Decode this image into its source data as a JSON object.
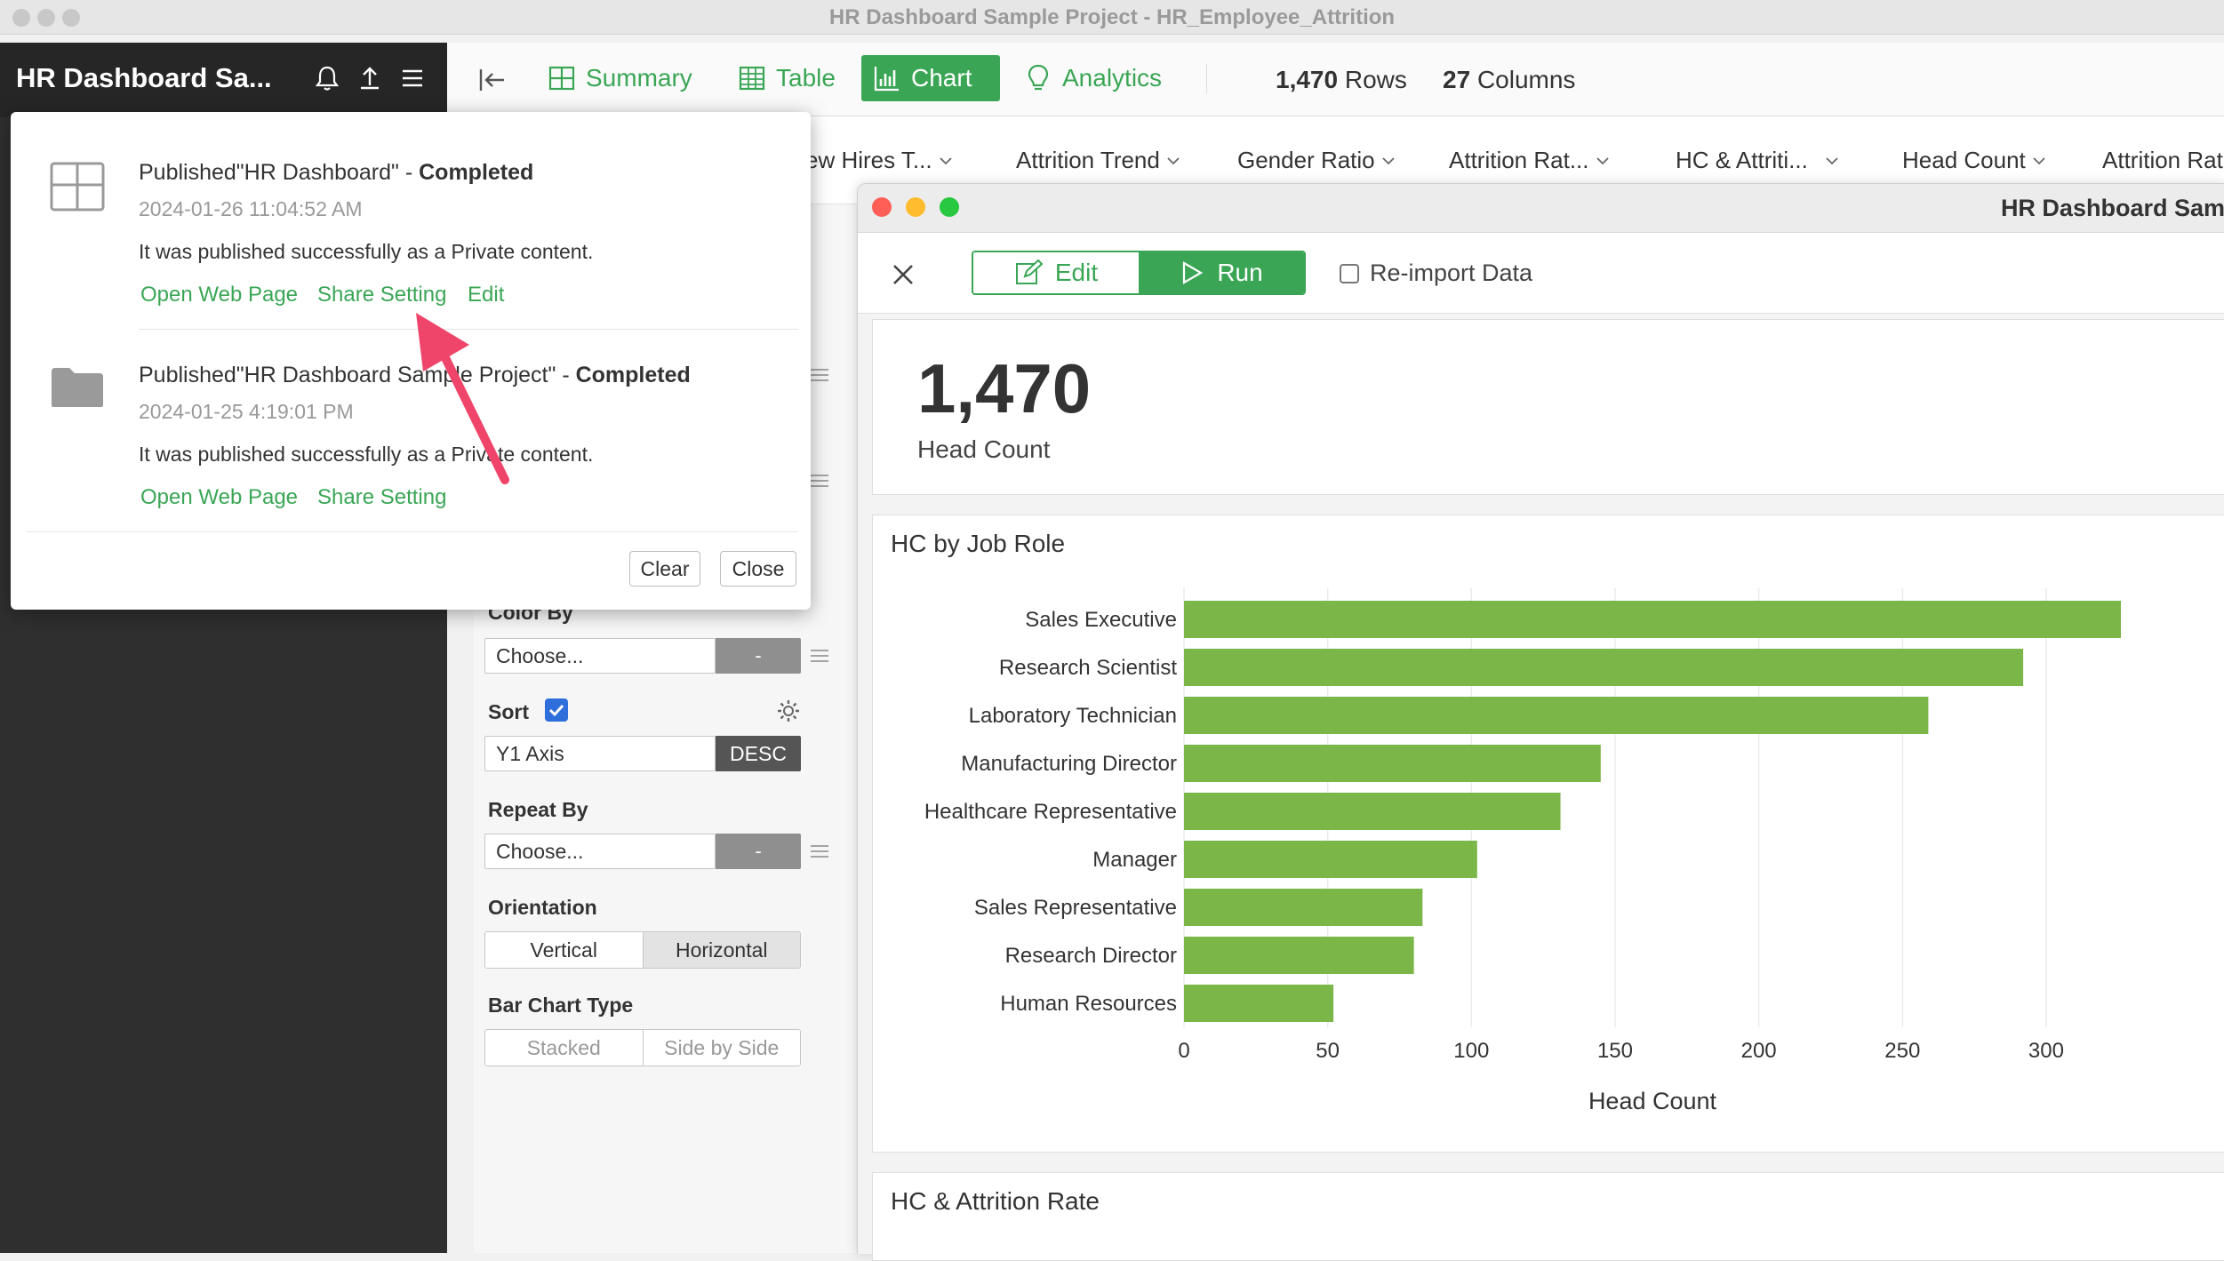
{
  "window": {
    "title": "HR Dashboard Sample Project - HR_Employee_Attrition"
  },
  "sidebar": {
    "project_name": "HR Dashboard Sa..."
  },
  "toolbar": {
    "summary": "Summary",
    "table": "Table",
    "chart": "Chart",
    "analytics": "Analytics",
    "rows_num": "1,470",
    "rows_label": "Rows",
    "cols_num": "27",
    "cols_label": "Columns"
  },
  "columns": [
    "ew Hires T...",
    "Attrition Trend",
    "Gender Ratio",
    "Attrition Rat...",
    "HC & Attriti...",
    "Head Count",
    "Attrition Rat"
  ],
  "settings": {
    "color_by_label": "Color By",
    "color_by_value": "Choose...",
    "color_by_btn": "-",
    "sort_label": "Sort",
    "sort_value": "Y1 Axis",
    "sort_order": "DESC",
    "repeat_by_label": "Repeat By",
    "repeat_by_value": "Choose...",
    "repeat_by_btn": "-",
    "orientation_label": "Orientation",
    "orientation_options": [
      "Vertical",
      "Horizontal"
    ],
    "orientation_selected": "Horizontal",
    "bar_type_label": "Bar Chart Type",
    "bar_type_options": [
      "Stacked",
      "Side by Side"
    ]
  },
  "dashboard": {
    "title": "HR Dashboard Sam",
    "edit": "Edit",
    "run": "Run",
    "reimport": "Re-import Data",
    "kpi_value": "1,470",
    "kpi_label": "Head Count",
    "chart_title": "HC by Job Role",
    "next_card_title": "HC & Attrition Rate",
    "accent": "#7ab648"
  },
  "chart_data": {
    "type": "bar",
    "orientation": "horizontal",
    "categories": [
      "Sales Executive",
      "Research Scientist",
      "Laboratory Technician",
      "Manufacturing Director",
      "Healthcare Representative",
      "Manager",
      "Sales Representative",
      "Research Director",
      "Human Resources"
    ],
    "values": [
      326,
      292,
      259,
      145,
      131,
      102,
      83,
      80,
      52
    ],
    "xlabel": "Head Count",
    "ylabel": "",
    "xlim": [
      0,
      326
    ],
    "xticks": [
      0,
      50,
      100,
      150,
      200,
      250,
      300
    ],
    "grid": true,
    "color": "#7ab648"
  },
  "notifications": {
    "items": [
      {
        "prefix": "Published\"HR Dashboard\" - ",
        "status": "Completed",
        "date": "2024-01-26 11:04:52 AM",
        "message": "It was published successfully as a Private content.",
        "links": [
          "Open Web Page",
          "Share Setting",
          "Edit"
        ],
        "icon": "dashboard-grid-icon"
      },
      {
        "prefix": "Published\"HR Dashboard Sample Project\" - ",
        "status": "Completed",
        "date": "2024-01-25 4:19:01 PM",
        "message": "It was published successfully as a Private content.",
        "links": [
          "Open Web Page",
          "Share Setting"
        ],
        "icon": "folder-icon"
      }
    ],
    "clear": "Clear",
    "close": "Close"
  },
  "colors": {
    "green": "#3aa655",
    "annotation_arrow": "#f0456a"
  }
}
